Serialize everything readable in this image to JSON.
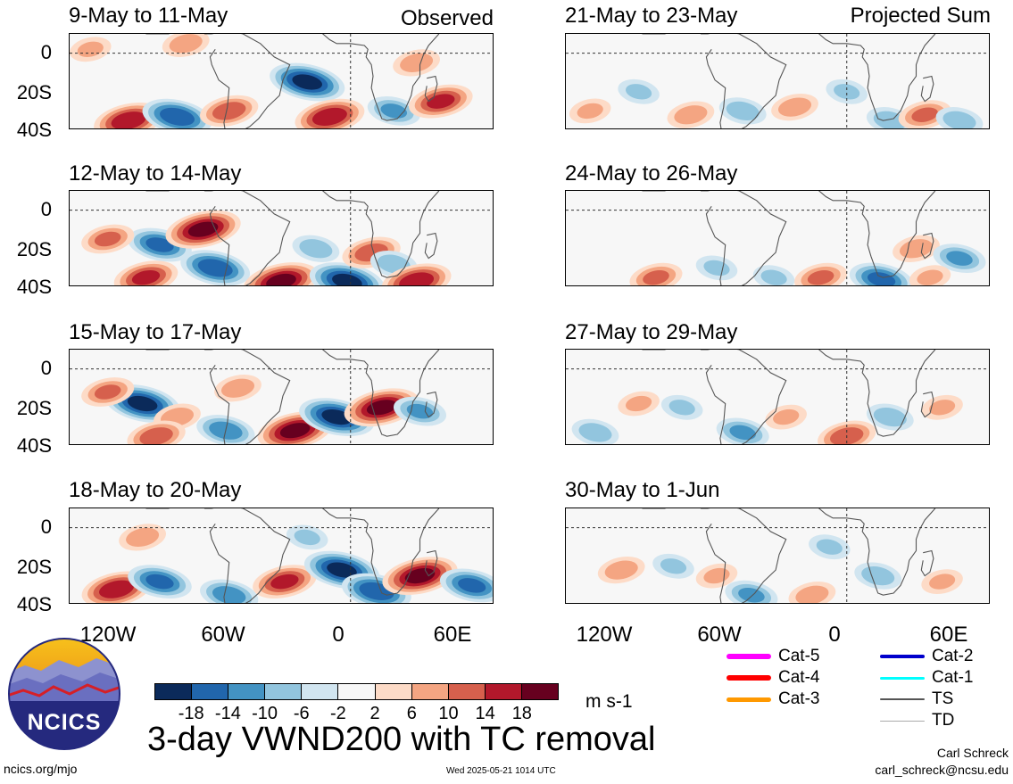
{
  "panels_left": [
    {
      "title": "9-May to 11-May",
      "tag": "Observed"
    },
    {
      "title": "12-May to 14-May",
      "tag": ""
    },
    {
      "title": "15-May to 17-May",
      "tag": ""
    },
    {
      "title": "18-May to 20-May",
      "tag": ""
    }
  ],
  "panels_right": [
    {
      "title": "21-May to 23-May",
      "tag": "Projected Sum"
    },
    {
      "title": "24-May to 26-May",
      "tag": ""
    },
    {
      "title": "27-May to 29-May",
      "tag": ""
    },
    {
      "title": "30-May to 1-Jun",
      "tag": ""
    }
  ],
  "axes": {
    "y_ticks": [
      "0",
      "20S",
      "40S"
    ],
    "x_ticks": [
      "120W",
      "60W",
      "0",
      "60E"
    ]
  },
  "colorbar": {
    "labels": [
      "-18",
      "-14",
      "-10",
      "-6",
      "-2",
      "2",
      "6",
      "10",
      "14",
      "18"
    ],
    "colors": [
      "#0b2a5a",
      "#2166ac",
      "#4393c3",
      "#92c5de",
      "#d1e5f0",
      "#f7f7f7",
      "#fddbc7",
      "#f4a582",
      "#d6604d",
      "#b2182b",
      "#67001f"
    ],
    "units": "m s-1"
  },
  "legend": [
    {
      "label": "Cat-5",
      "color": "#ff00ff",
      "width": 6
    },
    {
      "label": "Cat-4",
      "color": "#ff0000",
      "width": 6
    },
    {
      "label": "Cat-3",
      "color": "#ff9900",
      "width": 5
    },
    {
      "label": "Cat-2",
      "color": "#0000cc",
      "width": 4
    },
    {
      "label": "Cat-1",
      "color": "#00ffff",
      "width": 3
    },
    {
      "label": "TS",
      "color": "#555555",
      "width": 2
    },
    {
      "label": "TD",
      "color": "#aaaaaa",
      "width": 1
    }
  ],
  "main_title": "3-day VWND200 with TC removal",
  "logo_text": "NCICS",
  "footer": {
    "left": "ncics.org/mjo",
    "center": "Wed 2025-05-21 1014 UTC",
    "author": "Carl Schreck",
    "email": "carl_schreck@ncsu.edu"
  },
  "chart_data": [
    {
      "type": "heatmap",
      "title": "9-May to 11-May",
      "annotation": "Observed",
      "variable": "3-day VWND200 with TC removal",
      "units": "m s-1",
      "x_ticks": [
        "120W",
        "60W",
        "0",
        "60E"
      ],
      "y_ticks": [
        "0",
        "20S",
        "40S"
      ],
      "features": [
        {
          "lon": -128,
          "lat": -35,
          "value": 16
        },
        {
          "lon": -100,
          "lat": -33,
          "value": -16
        },
        {
          "lon": -70,
          "lat": -30,
          "value": 12
        },
        {
          "lon": -25,
          "lat": -15,
          "value": -18
        },
        {
          "lon": -12,
          "lat": -33,
          "value": 16
        },
        {
          "lon": 25,
          "lat": -30,
          "value": -10
        },
        {
          "lon": 52,
          "lat": -25,
          "value": 14
        },
        {
          "lon": -150,
          "lat": 2,
          "value": 6
        },
        {
          "lon": -95,
          "lat": 5,
          "value": 8
        },
        {
          "lon": 38,
          "lat": -5,
          "value": 8
        }
      ]
    },
    {
      "type": "heatmap",
      "title": "12-May to 14-May",
      "units": "m s-1",
      "features": [
        {
          "lon": -110,
          "lat": -18,
          "value": -14
        },
        {
          "lon": -85,
          "lat": -10,
          "value": 18
        },
        {
          "lon": -140,
          "lat": -15,
          "value": 10
        },
        {
          "lon": -118,
          "lat": -35,
          "value": 14
        },
        {
          "lon": -78,
          "lat": -30,
          "value": -16
        },
        {
          "lon": -40,
          "lat": -37,
          "value": 18
        },
        {
          "lon": -2,
          "lat": -37,
          "value": -18
        },
        {
          "lon": 12,
          "lat": -22,
          "value": 12
        },
        {
          "lon": 25,
          "lat": -28,
          "value": -8
        },
        {
          "lon": 38,
          "lat": -37,
          "value": 16
        },
        {
          "lon": -20,
          "lat": -20,
          "value": -8
        }
      ]
    },
    {
      "type": "heatmap",
      "title": "15-May to 17-May",
      "units": "m s-1",
      "features": [
        {
          "lon": -120,
          "lat": -18,
          "value": -18
        },
        {
          "lon": -140,
          "lat": -12,
          "value": 10
        },
        {
          "lon": -100,
          "lat": -25,
          "value": 8
        },
        {
          "lon": -112,
          "lat": -35,
          "value": 12
        },
        {
          "lon": -72,
          "lat": -32,
          "value": -12
        },
        {
          "lon": -32,
          "lat": -32,
          "value": 18
        },
        {
          "lon": -8,
          "lat": -25,
          "value": -18
        },
        {
          "lon": 18,
          "lat": -20,
          "value": 18
        },
        {
          "lon": 40,
          "lat": -22,
          "value": -10
        },
        {
          "lon": -65,
          "lat": -10,
          "value": 8
        }
      ]
    },
    {
      "type": "heatmap",
      "title": "18-May to 20-May",
      "units": "m s-1",
      "features": [
        {
          "lon": -135,
          "lat": -32,
          "value": 16
        },
        {
          "lon": -110,
          "lat": -28,
          "value": -14
        },
        {
          "lon": -120,
          "lat": -5,
          "value": 8
        },
        {
          "lon": -70,
          "lat": -35,
          "value": -12
        },
        {
          "lon": -38,
          "lat": -28,
          "value": 14
        },
        {
          "lon": -5,
          "lat": -22,
          "value": -18
        },
        {
          "lon": 15,
          "lat": -33,
          "value": -16
        },
        {
          "lon": 40,
          "lat": -25,
          "value": 18
        },
        {
          "lon": 70,
          "lat": -30,
          "value": -14
        },
        {
          "lon": -25,
          "lat": -5,
          "value": -6
        }
      ]
    },
    {
      "type": "heatmap",
      "title": "21-May to 23-May",
      "annotation": "Projected Sum",
      "units": "m s-1",
      "features": [
        {
          "lon": -148,
          "lat": -30,
          "value": 6
        },
        {
          "lon": -120,
          "lat": -20,
          "value": -6
        },
        {
          "lon": -90,
          "lat": -32,
          "value": 8
        },
        {
          "lon": -60,
          "lat": -30,
          "value": -8
        },
        {
          "lon": -30,
          "lat": -28,
          "value": 8
        },
        {
          "lon": 0,
          "lat": -20,
          "value": -6
        },
        {
          "lon": 25,
          "lat": -35,
          "value": -8
        },
        {
          "lon": 45,
          "lat": -32,
          "value": 10
        },
        {
          "lon": 65,
          "lat": -35,
          "value": -8
        }
      ]
    },
    {
      "type": "heatmap",
      "title": "24-May to 26-May",
      "units": "m s-1",
      "features": [
        {
          "lon": -110,
          "lat": -35,
          "value": 10
        },
        {
          "lon": -75,
          "lat": -30,
          "value": -6
        },
        {
          "lon": -42,
          "lat": -35,
          "value": -6
        },
        {
          "lon": -15,
          "lat": -35,
          "value": 10
        },
        {
          "lon": 20,
          "lat": -36,
          "value": -14
        },
        {
          "lon": 40,
          "lat": -20,
          "value": 8
        },
        {
          "lon": 65,
          "lat": -25,
          "value": -10
        },
        {
          "lon": 48,
          "lat": -35,
          "value": 6
        }
      ]
    },
    {
      "type": "heatmap",
      "title": "27-May to 29-May",
      "units": "m s-1",
      "features": [
        {
          "lon": -145,
          "lat": -33,
          "value": -8
        },
        {
          "lon": -120,
          "lat": -18,
          "value": 6
        },
        {
          "lon": -95,
          "lat": -20,
          "value": -6
        },
        {
          "lon": -60,
          "lat": -33,
          "value": -10
        },
        {
          "lon": -35,
          "lat": -25,
          "value": 6
        },
        {
          "lon": 0,
          "lat": -35,
          "value": 12
        },
        {
          "lon": 25,
          "lat": -25,
          "value": -8
        },
        {
          "lon": 55,
          "lat": -20,
          "value": 6
        }
      ]
    },
    {
      "type": "heatmap",
      "title": "30-May to 1-Jun",
      "units": "m s-1",
      "features": [
        {
          "lon": -130,
          "lat": -22,
          "value": 8
        },
        {
          "lon": -100,
          "lat": -20,
          "value": -6
        },
        {
          "lon": -75,
          "lat": -25,
          "value": 6
        },
        {
          "lon": -55,
          "lat": -35,
          "value": -10
        },
        {
          "lon": -20,
          "lat": -35,
          "value": 8
        },
        {
          "lon": 18,
          "lat": -25,
          "value": -8
        },
        {
          "lon": 55,
          "lat": -28,
          "value": 6
        },
        {
          "lon": -10,
          "lat": -10,
          "value": -6
        }
      ]
    }
  ]
}
